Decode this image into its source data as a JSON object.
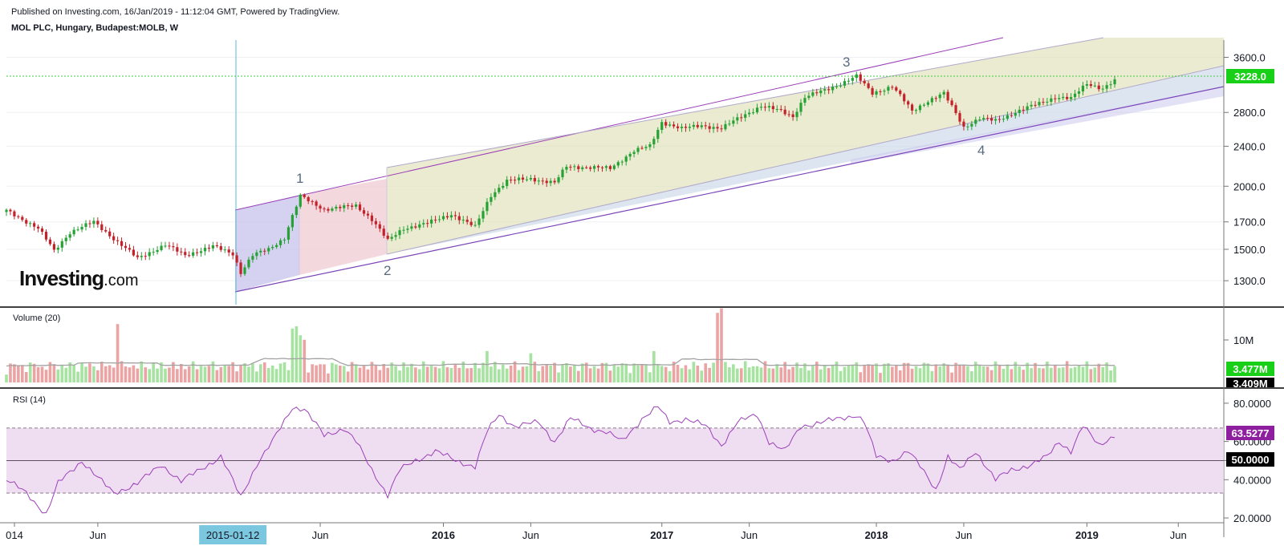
{
  "header": {
    "published": "Published on Investing.com, 16/Jan/2019 - 11:12:04 GMT, Powered by TradingView.",
    "symbol": "MOL PLC, Hungary, Budapest:MOLB, W"
  },
  "logo": {
    "main": "Investing",
    "suffix": ".com"
  },
  "colors": {
    "up": "#26a234",
    "down": "#c3222a",
    "volume_up": "#a6e2a0",
    "volume_down": "#eba3a3",
    "rsi": "#9c3fb8",
    "price_label_bg": "#19d019",
    "rsi_label_bg": "#8e1f9e"
  },
  "chart_data": [
    {
      "type": "candlestick",
      "panel": "price",
      "scale": "log",
      "ylim": [
        1200,
        3700
      ],
      "yticks": [
        "3600.0",
        "2800.0",
        "2400.0",
        "2000.0",
        "1700.0",
        "1500.0",
        "1300.0"
      ],
      "last_price_label": "3228.0",
      "x_ticks": [
        "014",
        "Jun",
        "2015-01-12",
        "Jun",
        "2016",
        "Jun",
        "2017",
        "Jun",
        "2018",
        "Jun",
        "2019",
        "Jun"
      ],
      "highlighted_x": "2015-01-12",
      "wave_labels": [
        "1",
        "2",
        "3",
        "4"
      ],
      "anchors": [
        {
          "t": 0,
          "p": 1790
        },
        {
          "t": 8,
          "p": 1650
        },
        {
          "t": 12,
          "p": 1490
        },
        {
          "t": 16,
          "p": 1620
        },
        {
          "t": 22,
          "p": 1700
        },
        {
          "t": 28,
          "p": 1550
        },
        {
          "t": 33,
          "p": 1440
        },
        {
          "t": 40,
          "p": 1530
        },
        {
          "t": 45,
          "p": 1460
        },
        {
          "t": 52,
          "p": 1520
        },
        {
          "t": 57,
          "p": 1470
        },
        {
          "t": 59,
          "p": 1350
        },
        {
          "t": 62,
          "p": 1460
        },
        {
          "t": 66,
          "p": 1500
        },
        {
          "t": 70,
          "p": 1580
        },
        {
          "t": 74,
          "p": 1910
        },
        {
          "t": 80,
          "p": 1800
        },
        {
          "t": 88,
          "p": 1830
        },
        {
          "t": 92,
          "p": 1720
        },
        {
          "t": 96,
          "p": 1560
        },
        {
          "t": 100,
          "p": 1650
        },
        {
          "t": 106,
          "p": 1690
        },
        {
          "t": 112,
          "p": 1760
        },
        {
          "t": 118,
          "p": 1660
        },
        {
          "t": 122,
          "p": 1920
        },
        {
          "t": 126,
          "p": 2050
        },
        {
          "t": 132,
          "p": 2070
        },
        {
          "t": 138,
          "p": 2030
        },
        {
          "t": 141,
          "p": 2190
        },
        {
          "t": 146,
          "p": 2180
        },
        {
          "t": 152,
          "p": 2170
        },
        {
          "t": 158,
          "p": 2350
        },
        {
          "t": 162,
          "p": 2400
        },
        {
          "t": 165,
          "p": 2680
        },
        {
          "t": 170,
          "p": 2600
        },
        {
          "t": 175,
          "p": 2640
        },
        {
          "t": 180,
          "p": 2600
        },
        {
          "t": 185,
          "p": 2750
        },
        {
          "t": 190,
          "p": 2880
        },
        {
          "t": 195,
          "p": 2820
        },
        {
          "t": 198,
          "p": 2750
        },
        {
          "t": 201,
          "p": 3000
        },
        {
          "t": 206,
          "p": 3100
        },
        {
          "t": 210,
          "p": 3190
        },
        {
          "t": 214,
          "p": 3300
        },
        {
          "t": 218,
          "p": 3060
        },
        {
          "t": 223,
          "p": 3150
        },
        {
          "t": 228,
          "p": 2820
        },
        {
          "t": 232,
          "p": 2950
        },
        {
          "t": 236,
          "p": 3050
        },
        {
          "t": 241,
          "p": 2620
        },
        {
          "t": 245,
          "p": 2720
        },
        {
          "t": 249,
          "p": 2700
        },
        {
          "t": 254,
          "p": 2800
        },
        {
          "t": 259,
          "p": 2900
        },
        {
          "t": 264,
          "p": 3000
        },
        {
          "t": 268,
          "p": 2980
        },
        {
          "t": 272,
          "p": 3200
        },
        {
          "t": 276,
          "p": 3120
        },
        {
          "t": 279,
          "p": 3228
        }
      ]
    },
    {
      "type": "bar",
      "panel": "volume",
      "title": "Volume (20)",
      "ylabel_ticks": [
        "10M"
      ],
      "last_labels": [
        "3.477M",
        "3.409M"
      ]
    },
    {
      "type": "line",
      "panel": "rsi",
      "title": "RSI (14)",
      "ylim": [
        20,
        85
      ],
      "yticks": [
        "80.0000",
        "60.0000",
        "50.0000",
        "40.0000",
        "20.0000"
      ],
      "last_labels": [
        "63.5277",
        "50.0000"
      ],
      "bands": [
        33,
        67
      ],
      "points": [
        {
          "t": 0,
          "v": 40
        },
        {
          "t": 5,
          "v": 33
        },
        {
          "t": 10,
          "v": 22
        },
        {
          "t": 13,
          "v": 38
        },
        {
          "t": 19,
          "v": 50
        },
        {
          "t": 23,
          "v": 41
        },
        {
          "t": 27,
          "v": 33
        },
        {
          "t": 33,
          "v": 38
        },
        {
          "t": 39,
          "v": 48
        },
        {
          "t": 44,
          "v": 39
        },
        {
          "t": 50,
          "v": 47
        },
        {
          "t": 54,
          "v": 52
        },
        {
          "t": 59,
          "v": 31
        },
        {
          "t": 63,
          "v": 48
        },
        {
          "t": 67,
          "v": 60
        },
        {
          "t": 72,
          "v": 78
        },
        {
          "t": 75,
          "v": 77
        },
        {
          "t": 80,
          "v": 63
        },
        {
          "t": 85,
          "v": 67
        },
        {
          "t": 88,
          "v": 60
        },
        {
          "t": 92,
          "v": 45
        },
        {
          "t": 96,
          "v": 32
        },
        {
          "t": 99,
          "v": 45
        },
        {
          "t": 103,
          "v": 50
        },
        {
          "t": 108,
          "v": 55
        },
        {
          "t": 113,
          "v": 50
        },
        {
          "t": 118,
          "v": 47
        },
        {
          "t": 121,
          "v": 65
        },
        {
          "t": 124,
          "v": 74
        },
        {
          "t": 128,
          "v": 68
        },
        {
          "t": 134,
          "v": 70
        },
        {
          "t": 138,
          "v": 60
        },
        {
          "t": 142,
          "v": 72
        },
        {
          "t": 147,
          "v": 67
        },
        {
          "t": 151,
          "v": 65
        },
        {
          "t": 155,
          "v": 60
        },
        {
          "t": 160,
          "v": 72
        },
        {
          "t": 164,
          "v": 78
        },
        {
          "t": 167,
          "v": 70
        },
        {
          "t": 171,
          "v": 72
        },
        {
          "t": 176,
          "v": 68
        },
        {
          "t": 180,
          "v": 58
        },
        {
          "t": 184,
          "v": 70
        },
        {
          "t": 189,
          "v": 74
        },
        {
          "t": 192,
          "v": 60
        },
        {
          "t": 196,
          "v": 55
        },
        {
          "t": 200,
          "v": 68
        },
        {
          "t": 205,
          "v": 70
        },
        {
          "t": 210,
          "v": 72
        },
        {
          "t": 214,
          "v": 74
        },
        {
          "t": 216,
          "v": 70
        },
        {
          "t": 219,
          "v": 52
        },
        {
          "t": 223,
          "v": 50
        },
        {
          "t": 227,
          "v": 55
        },
        {
          "t": 230,
          "v": 47
        },
        {
          "t": 234,
          "v": 35
        },
        {
          "t": 237,
          "v": 52
        },
        {
          "t": 240,
          "v": 45
        },
        {
          "t": 244,
          "v": 55
        },
        {
          "t": 249,
          "v": 40
        },
        {
          "t": 253,
          "v": 45
        },
        {
          "t": 258,
          "v": 48
        },
        {
          "t": 262,
          "v": 52
        },
        {
          "t": 265,
          "v": 60
        },
        {
          "t": 268,
          "v": 55
        },
        {
          "t": 271,
          "v": 68
        },
        {
          "t": 275,
          "v": 58
        },
        {
          "t": 279,
          "v": 63.5
        }
      ]
    }
  ]
}
